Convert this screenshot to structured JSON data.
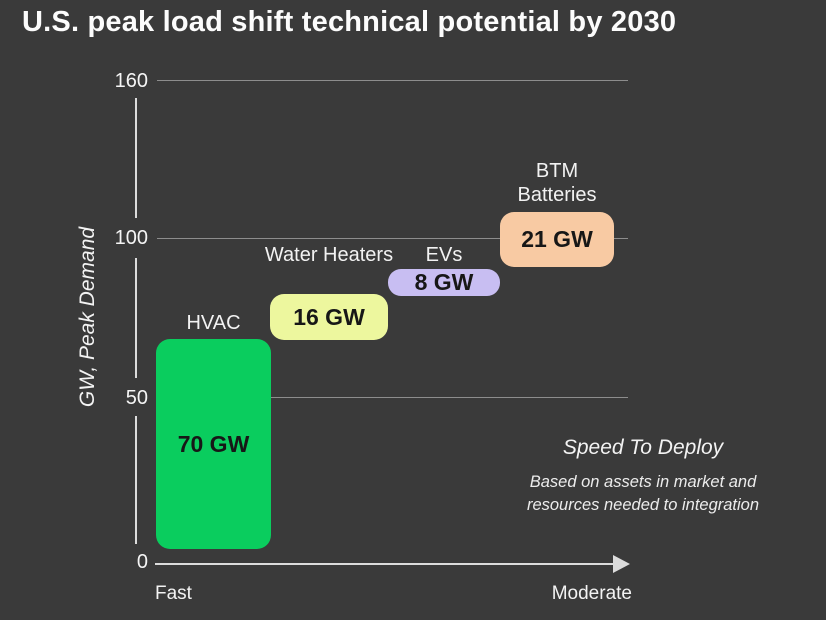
{
  "title": "U.S. peak load shift technical potential by 2030",
  "chart_data": {
    "type": "bar",
    "subtype": "waterfall",
    "title": "U.S. peak load shift technical potential by 2030",
    "ylabel": "GW, Peak Demand",
    "ylim": [
      0,
      160
    ],
    "yticks": [
      0,
      50,
      100,
      160
    ],
    "grid": "horizontal",
    "x_axis": {
      "left_label": "Fast",
      "right_label": "Moderate"
    },
    "series": [
      {
        "name": "HVAC",
        "value_gw": 70,
        "label": "70 GW",
        "start_gw": 0,
        "end_gw": 70,
        "color": "#0acd5e"
      },
      {
        "name": "Water Heaters",
        "value_gw": 16,
        "label": "16 GW",
        "start_gw": 70,
        "end_gw": 86,
        "color": "#edf79e"
      },
      {
        "name": "EVs",
        "value_gw": 8,
        "label": "8 GW",
        "start_gw": 86,
        "end_gw": 94,
        "color": "#c8bef2"
      },
      {
        "name": "BTM Batteries",
        "value_gw": 21,
        "label": "21 GW",
        "start_gw": 94,
        "end_gw": 115,
        "color": "#f8caa3"
      }
    ],
    "annotation": {
      "title": "Speed To Deploy",
      "subtitle_line1": "Based on assets in market and",
      "subtitle_line2": "resources needed to integration"
    },
    "colors": {
      "background": "#3a3a3a",
      "text": "#f5f5f5",
      "gridline": "#8d8d8d",
      "axis": "#dcdcdc",
      "block_text": "#171717"
    }
  }
}
